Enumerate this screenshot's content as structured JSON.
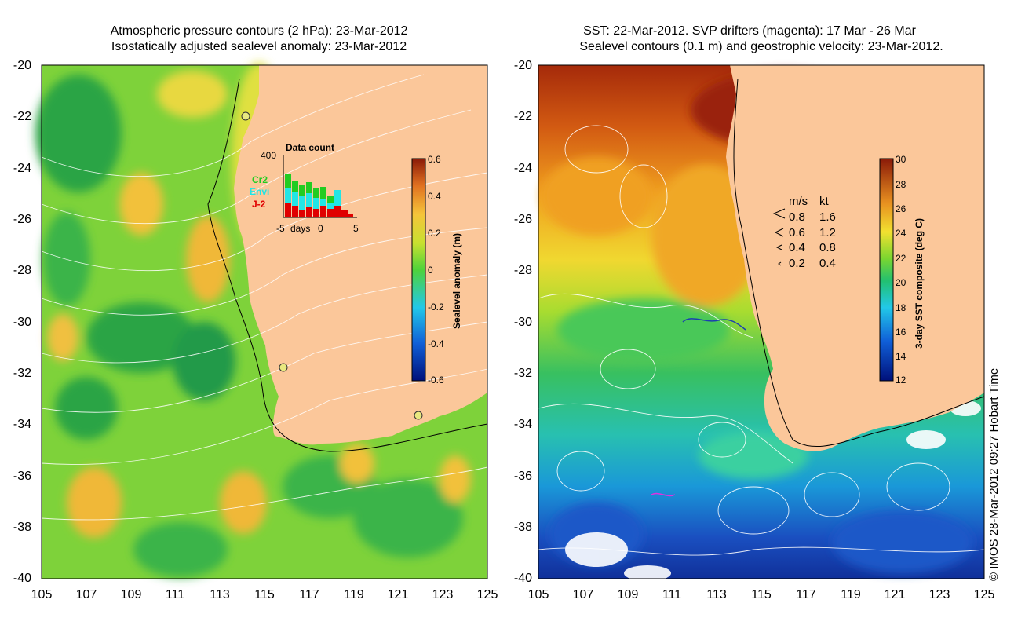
{
  "left_panel": {
    "title_line1": "Atmospheric pressure contours (2 hPa): 23-Mar-2012",
    "title_line2": "Isostatically adjusted sealevel anomaly: 23-Mar-2012",
    "colorbar_label": "Sealevel anomaly (m)",
    "colorbar_ticks": [
      "0.6",
      "0.4",
      "0.2",
      "0",
      "-0.2",
      "-0.4",
      "-0.6"
    ],
    "inset": {
      "title": "Data count",
      "ymax": "400",
      "series": [
        {
          "name": "Cr2",
          "color": "#22cc22"
        },
        {
          "name": "Envi",
          "color": "#22e5e5"
        },
        {
          "name": "J-2",
          "color": "#e00000"
        }
      ],
      "xtick_left": "-5",
      "xlabel": "days",
      "xtick_mid": "0",
      "xtick_right": "5"
    }
  },
  "right_panel": {
    "title_line1": "SST: 22-Mar-2012. SVP drifters (magenta): 17 Mar - 26 Mar",
    "title_line2": "Sealevel contours (0.1 m) and geostrophic velocity: 23-Mar-2012.",
    "colorbar_label": "3-day SST composite (deg C)",
    "colorbar_ticks": [
      "30",
      "28",
      "26",
      "24",
      "22",
      "20",
      "18",
      "16",
      "14",
      "12"
    ],
    "velocity_legend": {
      "header_ms": "m/s",
      "header_kt": "kt",
      "rows": [
        {
          "ms": "0.8",
          "kt": "1.6"
        },
        {
          "ms": "0.6",
          "kt": "1.2"
        },
        {
          "ms": "0.4",
          "kt": "0.8"
        },
        {
          "ms": "0.2",
          "kt": "0.4"
        }
      ]
    }
  },
  "axes": {
    "lat_ticks": [
      "-20",
      "-22",
      "-24",
      "-26",
      "-28",
      "-30",
      "-32",
      "-34",
      "-36",
      "-38",
      "-40"
    ],
    "lon_ticks": [
      "105",
      "107",
      "109",
      "111",
      "113",
      "115",
      "117",
      "119",
      "121",
      "123",
      "125"
    ]
  },
  "credit": "© IMOS 28-Mar-2012 09:27 Hobart Time",
  "colors": {
    "land": "#fbc79a",
    "ssla_low": "#1b9a3a",
    "ssla_mid": "#9fdb2c",
    "ssla_high": "#f2c13a",
    "sst_warm": "#a52a0a",
    "sst_cool": "#1a3fb0"
  }
}
